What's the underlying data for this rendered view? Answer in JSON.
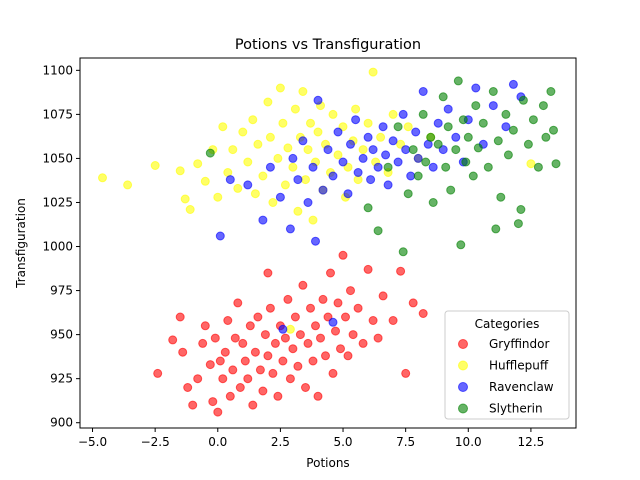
{
  "chart_data": {
    "type": "scatter",
    "title": "Potions vs Transfiguration",
    "xlabel": "Potions",
    "ylabel": "Transfiguration",
    "xlim": [
      -5.5,
      14.3
    ],
    "ylim": [
      897,
      1107
    ],
    "xticks": [
      -5.0,
      -2.5,
      0.0,
      2.5,
      5.0,
      7.5,
      10.0,
      12.5
    ],
    "xtick_labels": [
      "−5.0",
      "−2.5",
      "0.0",
      "2.5",
      "5.0",
      "7.5",
      "10.0",
      "12.5"
    ],
    "yticks": [
      900,
      925,
      950,
      975,
      1000,
      1025,
      1050,
      1075,
      1100
    ],
    "ytick_labels": [
      "900",
      "925",
      "950",
      "975",
      "1000",
      "1025",
      "1050",
      "1075",
      "1100"
    ],
    "grid": false,
    "legend": {
      "title": "Categories",
      "placement": "lower-right"
    },
    "series": [
      {
        "name": "Gryffindor",
        "color": "#ff0000",
        "points": [
          [
            -2.4,
            928
          ],
          [
            -1.8,
            947
          ],
          [
            -1.5,
            960
          ],
          [
            -1.4,
            940
          ],
          [
            -1.2,
            920
          ],
          [
            -1.0,
            910
          ],
          [
            -0.8,
            925
          ],
          [
            -0.6,
            945
          ],
          [
            -0.5,
            955
          ],
          [
            -0.3,
            933
          ],
          [
            -0.2,
            912
          ],
          [
            -0.1,
            948
          ],
          [
            0.0,
            906
          ],
          [
            0.1,
            935
          ],
          [
            0.2,
            925
          ],
          [
            0.3,
            940
          ],
          [
            0.4,
            958
          ],
          [
            0.5,
            915
          ],
          [
            0.6,
            930
          ],
          [
            0.7,
            948
          ],
          [
            0.8,
            968
          ],
          [
            0.9,
            920
          ],
          [
            1.0,
            945
          ],
          [
            1.1,
            935
          ],
          [
            1.2,
            925
          ],
          [
            1.3,
            955
          ],
          [
            1.4,
            910
          ],
          [
            1.5,
            940
          ],
          [
            1.6,
            960
          ],
          [
            1.7,
            930
          ],
          [
            1.8,
            918
          ],
          [
            1.9,
            950
          ],
          [
            2.0,
            985
          ],
          [
            2.0,
            938
          ],
          [
            2.1,
            965
          ],
          [
            2.2,
            928
          ],
          [
            2.3,
            945
          ],
          [
            2.4,
            915
          ],
          [
            2.5,
            955
          ],
          [
            2.6,
            935
          ],
          [
            2.7,
            948
          ],
          [
            2.8,
            970
          ],
          [
            2.9,
            925
          ],
          [
            3.0,
            942
          ],
          [
            3.1,
            960
          ],
          [
            3.2,
            932
          ],
          [
            3.3,
            950
          ],
          [
            3.4,
            978
          ],
          [
            3.5,
            920
          ],
          [
            3.6,
            945
          ],
          [
            3.7,
            965
          ],
          [
            3.8,
            935
          ],
          [
            3.9,
            955
          ],
          [
            4.0,
            915
          ],
          [
            4.1,
            948
          ],
          [
            4.2,
            970
          ],
          [
            4.3,
            938
          ],
          [
            4.4,
            960
          ],
          [
            4.5,
            985
          ],
          [
            4.6,
            928
          ],
          [
            4.7,
            952
          ],
          [
            4.8,
            968
          ],
          [
            4.9,
            942
          ],
          [
            5.0,
            995
          ],
          [
            5.1,
            960
          ],
          [
            5.2,
            938
          ],
          [
            5.3,
            975
          ],
          [
            5.4,
            950
          ],
          [
            5.6,
            965
          ],
          [
            5.8,
            945
          ],
          [
            6.0,
            987
          ],
          [
            6.2,
            958
          ],
          [
            6.4,
            948
          ],
          [
            6.6,
            972
          ],
          [
            7.0,
            958
          ],
          [
            7.3,
            986
          ],
          [
            7.5,
            928
          ],
          [
            7.8,
            968
          ],
          [
            8.2,
            962
          ]
        ]
      },
      {
        "name": "Hufflepuff",
        "color": "#ffff00",
        "points": [
          [
            -4.6,
            1039
          ],
          [
            -3.6,
            1035
          ],
          [
            -2.5,
            1046
          ],
          [
            -1.5,
            1043
          ],
          [
            -1.3,
            1027
          ],
          [
            -1.1,
            1021
          ],
          [
            -0.8,
            1047
          ],
          [
            -0.5,
            1037
          ],
          [
            -0.2,
            1055
          ],
          [
            0.0,
            1028
          ],
          [
            0.2,
            1068
          ],
          [
            0.4,
            1042
          ],
          [
            0.6,
            1055
          ],
          [
            0.8,
            1033
          ],
          [
            1.0,
            1065
          ],
          [
            1.2,
            1048
          ],
          [
            1.4,
            1072
          ],
          [
            1.5,
            1030
          ],
          [
            1.6,
            1058
          ],
          [
            1.8,
            1040
          ],
          [
            2.0,
            1082
          ],
          [
            2.1,
            1062
          ],
          [
            2.2,
            1025
          ],
          [
            2.4,
            1050
          ],
          [
            2.5,
            1090
          ],
          [
            2.6,
            1070
          ],
          [
            2.7,
            1035
          ],
          [
            2.8,
            1056
          ],
          [
            3.0,
            1045
          ],
          [
            3.1,
            1078
          ],
          [
            3.2,
            1020
          ],
          [
            3.3,
            1062
          ],
          [
            3.4,
            1088
          ],
          [
            3.5,
            1038
          ],
          [
            3.6,
            1055
          ],
          [
            3.7,
            1070
          ],
          [
            3.8,
            1015
          ],
          [
            3.9,
            1048
          ],
          [
            4.0,
            1065
          ],
          [
            4.1,
            1080
          ],
          [
            4.2,
            1032
          ],
          [
            4.3,
            1058
          ],
          [
            4.5,
            1042
          ],
          [
            4.6,
            1075
          ],
          [
            4.8,
            1052
          ],
          [
            5.0,
            1068
          ],
          [
            5.1,
            1028
          ],
          [
            5.2,
            1045
          ],
          [
            5.4,
            1060
          ],
          [
            5.5,
            1078
          ],
          [
            5.6,
            1038
          ],
          [
            5.8,
            1055
          ],
          [
            6.0,
            1070
          ],
          [
            6.2,
            1099
          ],
          [
            6.3,
            1048
          ],
          [
            6.5,
            1062
          ],
          [
            6.8,
            1042
          ],
          [
            7.0,
            1075
          ],
          [
            7.3,
            1058
          ],
          [
            7.6,
            1068
          ],
          [
            8.0,
            1050
          ],
          [
            8.5,
            1062
          ],
          [
            12.5,
            1047
          ],
          [
            2.9,
            953
          ]
        ]
      },
      {
        "name": "Ravenclaw",
        "color": "#0000ff",
        "points": [
          [
            0.1,
            1006
          ],
          [
            0.5,
            1038
          ],
          [
            1.2,
            1035
          ],
          [
            1.8,
            1015
          ],
          [
            2.1,
            1045
          ],
          [
            2.5,
            1028
          ],
          [
            2.9,
            1010
          ],
          [
            3.0,
            1050
          ],
          [
            3.2,
            1038
          ],
          [
            3.4,
            1060
          ],
          [
            3.6,
            1025
          ],
          [
            3.8,
            1045
          ],
          [
            3.9,
            1003
          ],
          [
            4.0,
            1083
          ],
          [
            4.2,
            1032
          ],
          [
            4.4,
            1055
          ],
          [
            4.6,
            1040
          ],
          [
            4.8,
            1065
          ],
          [
            5.0,
            1048
          ],
          [
            5.2,
            1030
          ],
          [
            5.3,
            1058
          ],
          [
            5.5,
            1072
          ],
          [
            5.6,
            1042
          ],
          [
            5.8,
            1050
          ],
          [
            6.0,
            1062
          ],
          [
            6.1,
            1038
          ],
          [
            6.2,
            1055
          ],
          [
            6.4,
            1045
          ],
          [
            6.6,
            1068
          ],
          [
            6.7,
            1052
          ],
          [
            6.8,
            1035
          ],
          [
            7.0,
            1060
          ],
          [
            7.2,
            1048
          ],
          [
            7.4,
            1075
          ],
          [
            7.5,
            1055
          ],
          [
            7.7,
            1040
          ],
          [
            7.9,
            1065
          ],
          [
            8.0,
            1050
          ],
          [
            8.2,
            1088
          ],
          [
            8.4,
            1058
          ],
          [
            8.6,
            1045
          ],
          [
            8.8,
            1070
          ],
          [
            9.0,
            1055
          ],
          [
            9.2,
            1078
          ],
          [
            9.5,
            1062
          ],
          [
            9.8,
            1048
          ],
          [
            10.0,
            1072
          ],
          [
            10.3,
            1090
          ],
          [
            10.6,
            1058
          ],
          [
            11.0,
            1080
          ],
          [
            11.5,
            1068
          ],
          [
            11.8,
            1092
          ],
          [
            12.1,
            1085
          ],
          [
            4.6,
            957
          ],
          [
            2.6,
            953
          ]
        ]
      },
      {
        "name": "Slytherin",
        "color": "#008000",
        "points": [
          [
            -0.3,
            1053
          ],
          [
            6.0,
            1022
          ],
          [
            6.4,
            1009
          ],
          [
            6.8,
            1045
          ],
          [
            7.2,
            1068
          ],
          [
            7.4,
            997
          ],
          [
            7.6,
            1030
          ],
          [
            7.8,
            1055
          ],
          [
            8.0,
            1040
          ],
          [
            8.2,
            1075
          ],
          [
            8.3,
            1048
          ],
          [
            8.5,
            1062
          ],
          [
            8.6,
            1025
          ],
          [
            8.8,
            1058
          ],
          [
            9.0,
            1085
          ],
          [
            9.1,
            1045
          ],
          [
            9.2,
            1068
          ],
          [
            9.3,
            1032
          ],
          [
            9.5,
            1055
          ],
          [
            9.6,
            1094
          ],
          [
            9.7,
            1001
          ],
          [
            9.8,
            1072
          ],
          [
            9.9,
            1048
          ],
          [
            10.0,
            1062
          ],
          [
            10.2,
            1040
          ],
          [
            10.3,
            1080
          ],
          [
            10.4,
            1056
          ],
          [
            10.6,
            1070
          ],
          [
            10.8,
            1045
          ],
          [
            11.0,
            1088
          ],
          [
            11.2,
            1060
          ],
          [
            11.3,
            1028
          ],
          [
            11.5,
            1075
          ],
          [
            11.6,
            1052
          ],
          [
            11.8,
            1066
          ],
          [
            12.0,
            1013
          ],
          [
            12.2,
            1083
          ],
          [
            12.4,
            1058
          ],
          [
            12.6,
            1072
          ],
          [
            12.8,
            1045
          ],
          [
            13.0,
            1080
          ],
          [
            13.1,
            1062
          ],
          [
            13.3,
            1088
          ],
          [
            13.4,
            1066
          ],
          [
            13.5,
            1047
          ],
          [
            12.1,
            1021
          ],
          [
            11.1,
            1010
          ]
        ]
      }
    ]
  }
}
